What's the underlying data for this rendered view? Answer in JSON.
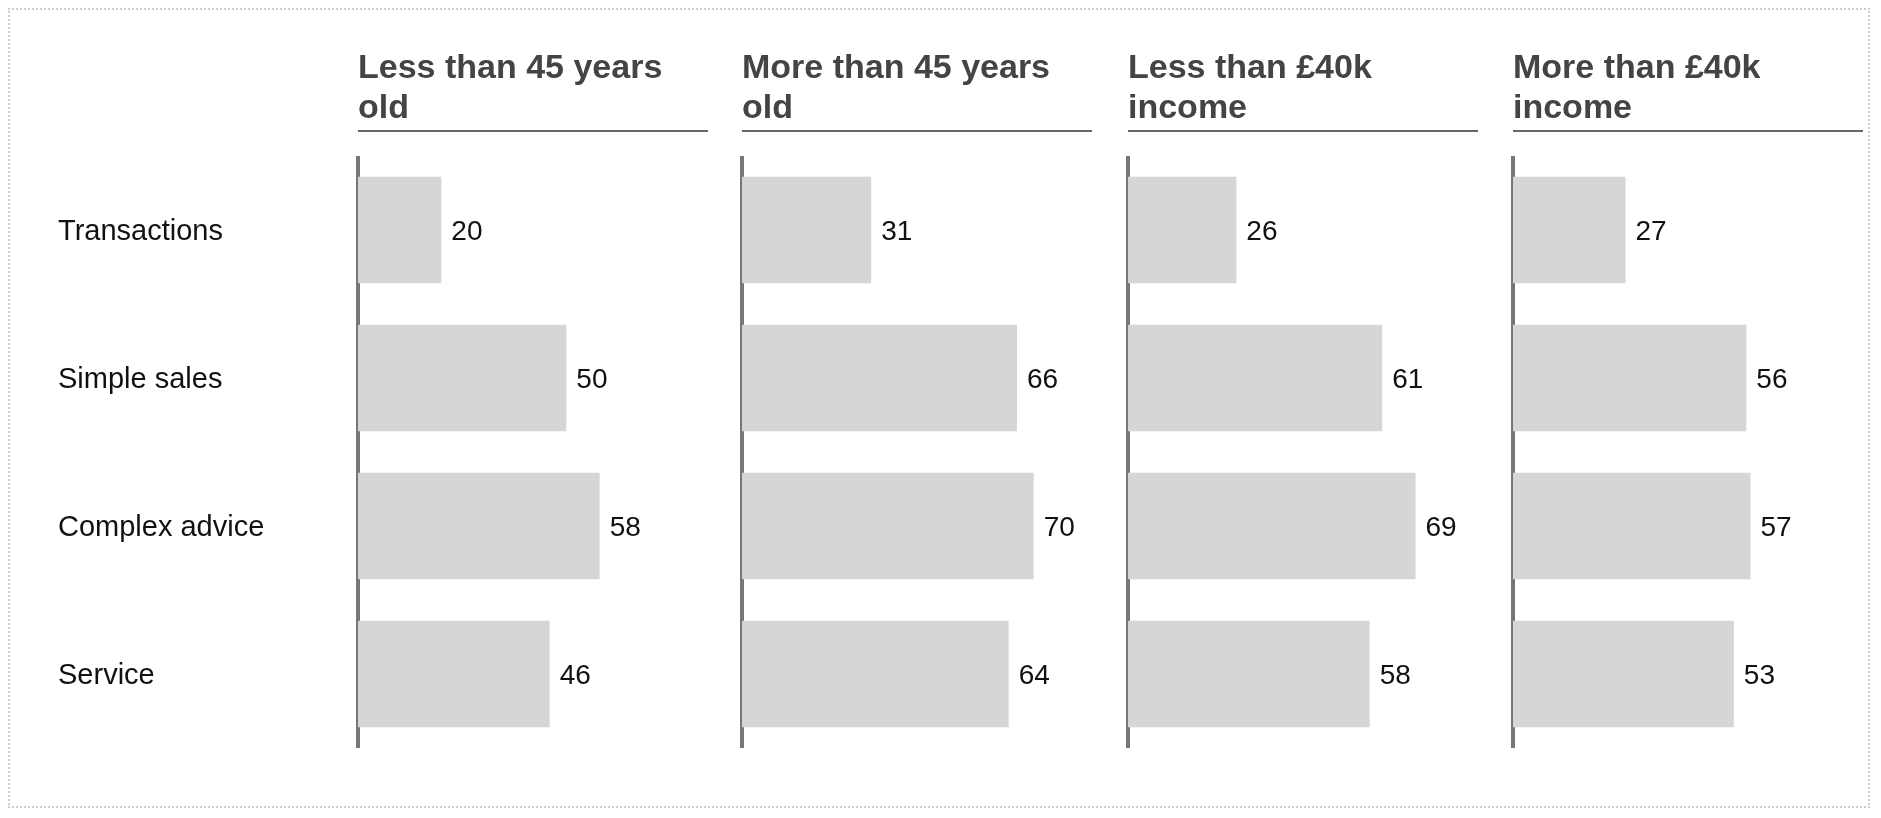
{
  "chart_data": [
    {
      "type": "bar",
      "orientation": "horizontal",
      "title": "Less than 45 years old",
      "categories": [
        "Transactions",
        "Simple sales",
        "Complex advice",
        "Service"
      ],
      "values": [
        20,
        50,
        58,
        46
      ],
      "color": "#d6d6d6",
      "data_labels": true,
      "tick_labels": "y"
    },
    {
      "type": "bar",
      "orientation": "horizontal",
      "title": "More than 45 years old",
      "categories": [
        null,
        null,
        null,
        null
      ],
      "values": [
        31,
        66,
        70,
        64
      ],
      "color": "#d6d6d6",
      "data_labels": true,
      "tick_labels": false
    },
    {
      "type": "bar",
      "orientation": "horizontal",
      "title": "Less than £40k income",
      "categories": [
        null,
        null,
        null,
        null
      ],
      "values": [
        26,
        61,
        69,
        58
      ],
      "color": "#d6d6d6",
      "data_labels": true,
      "tick_labels": false
    },
    {
      "type": "bar",
      "orientation": "horizontal",
      "title": "More than £40k income",
      "categories": [
        null,
        null,
        null,
        null
      ],
      "values": [
        27,
        56,
        57,
        53
      ],
      "color": "#d6d6d6",
      "data_labels": true,
      "tick_labels": false
    }
  ]
}
